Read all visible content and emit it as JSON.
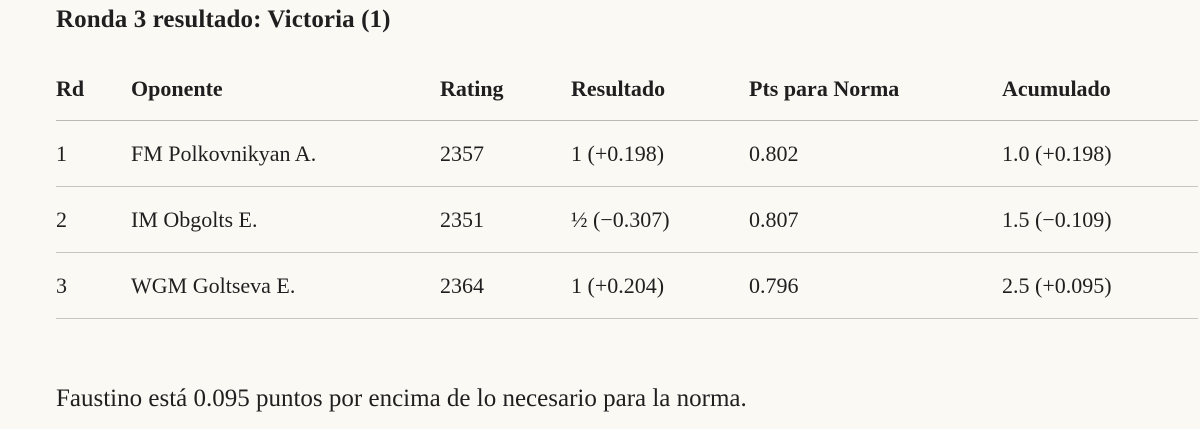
{
  "title": "Ronda 3 resultado: Victoria (1)",
  "table": {
    "headers": {
      "round": "Rd",
      "opponent": "Oponente",
      "rating": "Rating",
      "result": "Resultado",
      "points_for_norm": "Pts para Norma",
      "cumulative": "Acumulado"
    },
    "rows": [
      {
        "round": "1",
        "opponent": "FM Polkovnikyan A.",
        "rating": "2357",
        "result": "1 (+0.198)",
        "points_for_norm": "0.802",
        "cumulative": "1.0 (+0.198)"
      },
      {
        "round": "2",
        "opponent": "IM Obgolts E.",
        "rating": "2351",
        "result": "½ (−0.307)",
        "points_for_norm": "0.807",
        "cumulative": "1.5 (−0.109)"
      },
      {
        "round": "3",
        "opponent": "WGM Goltseva E.",
        "rating": "2364",
        "result": "1 (+0.204)",
        "points_for_norm": "0.796",
        "cumulative": "2.5 (+0.095)"
      }
    ]
  },
  "summary": "Faustino está 0.095 puntos por encima de lo necesario para la norma."
}
